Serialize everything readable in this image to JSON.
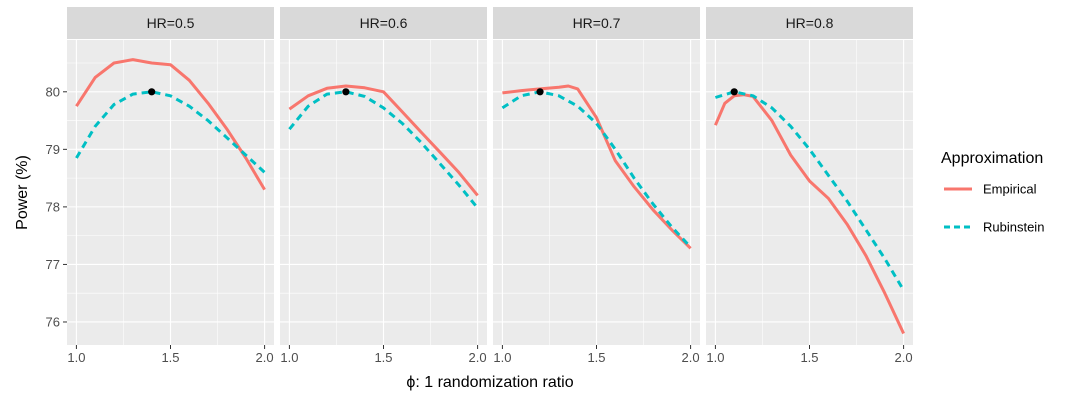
{
  "chart_data": {
    "type": "line",
    "facet_by": "HR",
    "xlabel_symbol": "ϕ",
    "xlabel_text": ": 1 randomization ratio",
    "ylabel": "Power (%)",
    "xlim": [
      0.95,
      2.05
    ],
    "ylim": [
      75.6,
      80.9
    ],
    "x_major_ticks": [
      1.0,
      1.5,
      2.0
    ],
    "x_tick_labels": [
      "1.0",
      "1.5",
      "2.0"
    ],
    "y_major_ticks": [
      76,
      77,
      78,
      79,
      80
    ],
    "y_tick_labels": [
      "76",
      "77",
      "78",
      "79",
      "80"
    ],
    "grid": true,
    "legend": {
      "title": "Approximation",
      "position": "right",
      "entries": [
        {
          "label": "Empirical",
          "color": "#F8766D",
          "dash": "solid"
        },
        {
          "label": "Rubinstein",
          "color": "#00BFC4",
          "dash": "dashed"
        }
      ]
    },
    "panels": [
      {
        "label": "HR=0.5",
        "optimum": {
          "x": 1.4,
          "y": 80.0
        },
        "series": [
          {
            "name": "Empirical",
            "color": "#F8766D",
            "dash": "solid",
            "x": [
              1.0,
              1.1,
              1.2,
              1.3,
              1.4,
              1.5,
              1.6,
              1.7,
              1.8,
              1.9,
              2.0
            ],
            "y": [
              79.75,
              80.25,
              80.5,
              80.56,
              80.5,
              80.47,
              80.2,
              79.8,
              79.35,
              78.85,
              78.3
            ]
          },
          {
            "name": "Rubinstein",
            "color": "#00BFC4",
            "dash": "dashed",
            "x": [
              1.0,
              1.1,
              1.2,
              1.3,
              1.4,
              1.5,
              1.6,
              1.7,
              1.8,
              1.9,
              2.0
            ],
            "y": [
              78.85,
              79.4,
              79.78,
              79.96,
              80.0,
              79.93,
              79.75,
              79.5,
              79.2,
              78.9,
              78.6
            ]
          }
        ]
      },
      {
        "label": "HR=0.6",
        "optimum": {
          "x": 1.3,
          "y": 80.0
        },
        "series": [
          {
            "name": "Empirical",
            "color": "#F8766D",
            "dash": "solid",
            "x": [
              1.0,
              1.1,
              1.2,
              1.3,
              1.4,
              1.5,
              1.6,
              1.7,
              1.8,
              1.9,
              2.0
            ],
            "y": [
              79.7,
              79.93,
              80.06,
              80.1,
              80.07,
              80.0,
              79.65,
              79.3,
              78.95,
              78.6,
              78.2
            ]
          },
          {
            "name": "Rubinstein",
            "color": "#00BFC4",
            "dash": "dashed",
            "x": [
              1.0,
              1.1,
              1.2,
              1.3,
              1.4,
              1.5,
              1.6,
              1.7,
              1.8,
              1.9,
              2.0
            ],
            "y": [
              79.35,
              79.75,
              79.96,
              80.0,
              79.92,
              79.72,
              79.45,
              79.12,
              78.75,
              78.38,
              77.98
            ]
          }
        ]
      },
      {
        "label": "HR=0.7",
        "optimum": {
          "x": 1.2,
          "y": 80.0
        },
        "series": [
          {
            "name": "Empirical",
            "color": "#F8766D",
            "dash": "solid",
            "x": [
              1.0,
              1.1,
              1.2,
              1.3,
              1.35,
              1.4,
              1.5,
              1.6,
              1.7,
              1.8,
              1.9,
              2.0
            ],
            "y": [
              79.98,
              80.02,
              80.05,
              80.08,
              80.1,
              80.05,
              79.55,
              78.8,
              78.35,
              77.95,
              77.6,
              77.28
            ]
          },
          {
            "name": "Rubinstein",
            "color": "#00BFC4",
            "dash": "dashed",
            "x": [
              1.0,
              1.1,
              1.2,
              1.3,
              1.4,
              1.5,
              1.6,
              1.7,
              1.8,
              1.9,
              2.0
            ],
            "y": [
              79.72,
              79.93,
              80.0,
              79.93,
              79.75,
              79.45,
              79.0,
              78.5,
              78.05,
              77.65,
              77.3
            ]
          }
        ]
      },
      {
        "label": "HR=0.8",
        "optimum": {
          "x": 1.1,
          "y": 80.0
        },
        "series": [
          {
            "name": "Empirical",
            "color": "#F8766D",
            "dash": "solid",
            "x": [
              1.0,
              1.05,
              1.1,
              1.15,
              1.2,
              1.3,
              1.4,
              1.5,
              1.6,
              1.7,
              1.8,
              1.9,
              2.0
            ],
            "y": [
              79.42,
              79.8,
              79.93,
              79.95,
              79.92,
              79.5,
              78.9,
              78.45,
              78.15,
              77.7,
              77.15,
              76.5,
              75.8
            ]
          },
          {
            "name": "Rubinstein",
            "color": "#00BFC4",
            "dash": "dashed",
            "x": [
              1.0,
              1.1,
              1.2,
              1.3,
              1.4,
              1.5,
              1.6,
              1.7,
              1.8,
              1.9,
              2.0
            ],
            "y": [
              79.9,
              80.0,
              79.93,
              79.72,
              79.4,
              79.0,
              78.55,
              78.1,
              77.6,
              77.1,
              76.55
            ]
          }
        ]
      }
    ]
  }
}
